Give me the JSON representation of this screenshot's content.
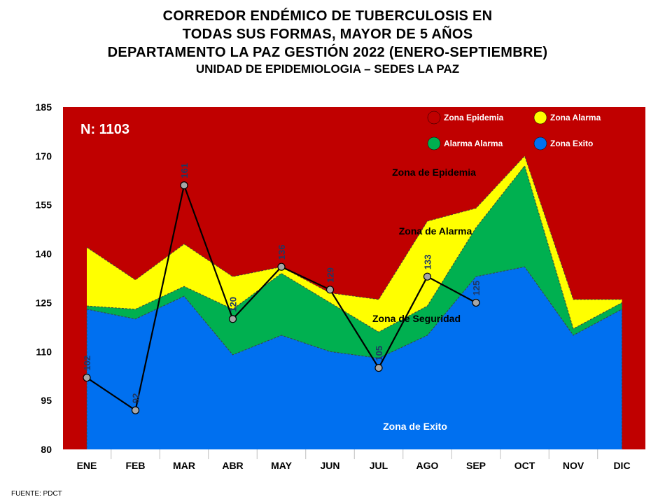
{
  "title_lines": [
    "CORREDOR ENDÉMICO DE TUBERCULOSIS EN",
    "TODAS SUS FORMAS, MAYOR DE 5 AÑOS",
    "DEPARTAMENTO LA PAZ GESTIÓN 2022 (ENERO-SEPTIEMBRE)"
  ],
  "subtitle": "UNIDAD DE EPIDEMIOLOGIA – SEDES LA PAZ",
  "source": "FUENTE:   PDCT",
  "chart_data": {
    "type": "area",
    "n_label": "N: 1103",
    "categories": [
      "ENE",
      "FEB",
      "MAR",
      "ABR",
      "MAY",
      "JUN",
      "JUL",
      "AGO",
      "SEP",
      "OCT",
      "NOV",
      "DIC"
    ],
    "ylim": [
      80,
      185
    ],
    "yticks": [
      80,
      95,
      110,
      125,
      140,
      155,
      170,
      185
    ],
    "zones": {
      "exito_upper": [
        123,
        120,
        127,
        109,
        115,
        110,
        108,
        115,
        133,
        136,
        115,
        123
      ],
      "seguridad_upper": [
        124,
        123,
        130,
        123,
        134,
        125,
        116,
        124,
        148,
        167,
        117,
        125
      ],
      "alarma_upper": [
        142,
        132,
        143,
        133,
        136,
        128,
        126,
        150,
        154,
        170,
        126,
        126
      ]
    },
    "series": [
      {
        "name": "",
        "values": [
          102,
          92,
          161,
          120,
          136,
          129,
          105,
          133,
          125,
          null,
          null,
          null
        ]
      }
    ],
    "legend": [
      {
        "label": "Zona Epidemia",
        "color": "#c00000"
      },
      {
        "label": "Zona  Alarma",
        "color": "#ffff00"
      },
      {
        "label": "Alarma  Alarma",
        "color": "#00b050"
      },
      {
        "label": "Zona Exito",
        "color": "#0070f0"
      }
    ],
    "zone_labels": [
      {
        "text": "Zona de Epidemia"
      },
      {
        "text": "Zona de Alarma"
      },
      {
        "text": "Zona de Seguridad"
      },
      {
        "text": "Zona de Exito"
      }
    ],
    "colors": {
      "epidemia": "#c00000",
      "alarma": "#ffff00",
      "seguridad": "#00b050",
      "exito": "#0070f0",
      "line": "#000000",
      "marker": "#a6a6a6",
      "data_label": "#1f3864"
    }
  }
}
